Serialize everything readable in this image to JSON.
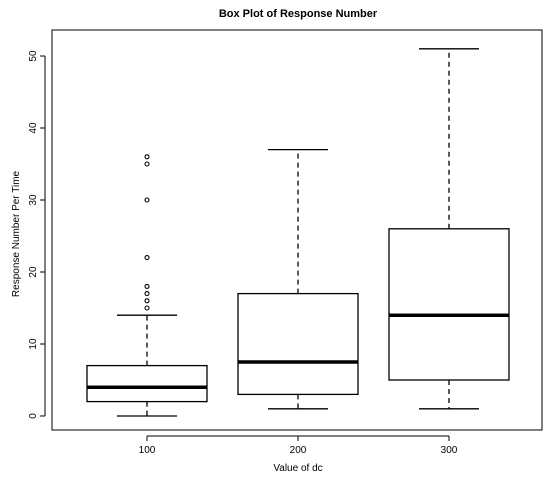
{
  "chart_data": {
    "type": "boxplot",
    "title": "Box Plot of Response Number",
    "xlabel": "Value of dc",
    "ylabel": "Response Number Per Time",
    "categories": [
      "100",
      "200",
      "300"
    ],
    "ylim": [
      -2,
      53
    ],
    "yticks": [
      0,
      10,
      20,
      30,
      40,
      50
    ],
    "grid": false,
    "boxes": [
      {
        "category": "100",
        "whisker_low": 0,
        "q1": 2,
        "median": 4,
        "q3": 7,
        "whisker_high": 14,
        "outliers": [
          15,
          16,
          17,
          18,
          22,
          30,
          35,
          36
        ]
      },
      {
        "category": "200",
        "whisker_low": 1,
        "q1": 3,
        "median": 7.5,
        "q3": 17,
        "whisker_high": 37,
        "outliers": []
      },
      {
        "category": "300",
        "whisker_low": 1,
        "q1": 5,
        "median": 14,
        "q3": 26,
        "whisker_high": 51,
        "outliers": []
      }
    ]
  }
}
